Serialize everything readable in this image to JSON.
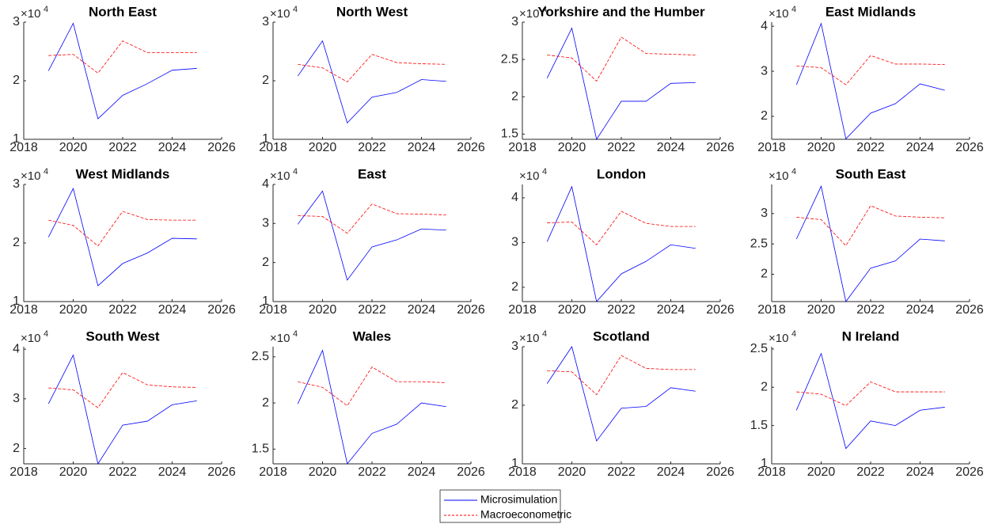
{
  "chart_data": [
    {
      "type": "line",
      "title": "North East",
      "y_multiplier": "×10",
      "y_exponent": "4",
      "x": [
        2019,
        2020,
        2021,
        2022,
        2023,
        2024,
        2025
      ],
      "xlim": [
        2018,
        2026
      ],
      "xticks": [
        2018,
        2020,
        2022,
        2024,
        2026
      ],
      "ylim": [
        1,
        3
      ],
      "yticks": [
        1,
        2,
        3
      ],
      "series": [
        {
          "name": "Microsimulation",
          "color": "#0000ff",
          "linestyle": "solid",
          "values": [
            2.17,
            2.98,
            1.35,
            1.75,
            1.95,
            2.18,
            2.21
          ]
        },
        {
          "name": "Macroeconometric",
          "color": "#ff0000",
          "linestyle": "dashed",
          "values": [
            2.43,
            2.45,
            2.13,
            2.68,
            2.48,
            2.48,
            2.48
          ]
        }
      ]
    },
    {
      "type": "line",
      "title": "North West",
      "y_multiplier": "×10",
      "y_exponent": "4",
      "x": [
        2019,
        2020,
        2021,
        2022,
        2023,
        2024,
        2025
      ],
      "xlim": [
        2018,
        2026
      ],
      "xticks": [
        2018,
        2020,
        2022,
        2024,
        2026
      ],
      "ylim": [
        1,
        3
      ],
      "yticks": [
        1,
        2,
        3
      ],
      "series": [
        {
          "name": "Microsimulation",
          "color": "#0000ff",
          "linestyle": "solid",
          "values": [
            2.08,
            2.68,
            1.28,
            1.72,
            1.8,
            2.02,
            1.99
          ]
        },
        {
          "name": "Macroeconometric",
          "color": "#ff0000",
          "linestyle": "dashed",
          "values": [
            2.28,
            2.22,
            1.98,
            2.45,
            2.31,
            2.29,
            2.28
          ]
        }
      ]
    },
    {
      "type": "line",
      "title": "Yorkshire and the Humber",
      "y_multiplier": "×10",
      "y_exponent": "4",
      "x": [
        2019,
        2020,
        2021,
        2022,
        2023,
        2024,
        2025
      ],
      "xlim": [
        2018,
        2026
      ],
      "xticks": [
        2018,
        2020,
        2022,
        2024,
        2026
      ],
      "ylim": [
        1.43,
        3
      ],
      "yticks": [
        1.5,
        2,
        2.5,
        3
      ],
      "series": [
        {
          "name": "Microsimulation",
          "color": "#0000ff",
          "linestyle": "solid",
          "values": [
            2.25,
            2.92,
            1.43,
            1.94,
            1.94,
            2.18,
            2.19
          ]
        },
        {
          "name": "Macroeconometric",
          "color": "#ff0000",
          "linestyle": "dashed",
          "values": [
            2.56,
            2.52,
            2.21,
            2.8,
            2.58,
            2.57,
            2.56
          ]
        }
      ]
    },
    {
      "type": "line",
      "title": "East Midlands",
      "y_multiplier": "×10",
      "y_exponent": "4",
      "x": [
        2019,
        2020,
        2021,
        2022,
        2023,
        2024,
        2025
      ],
      "xlim": [
        2018,
        2026
      ],
      "xticks": [
        2018,
        2020,
        2022,
        2024,
        2026
      ],
      "ylim": [
        1.49,
        4.09
      ],
      "yticks": [
        2,
        3,
        4
      ],
      "series": [
        {
          "name": "Microsimulation",
          "color": "#0000ff",
          "linestyle": "solid",
          "values": [
            2.7,
            4.06,
            1.5,
            2.07,
            2.28,
            2.72,
            2.58
          ]
        },
        {
          "name": "Macroeconometric",
          "color": "#ff0000",
          "linestyle": "dashed",
          "values": [
            3.12,
            3.08,
            2.7,
            3.35,
            3.16,
            3.16,
            3.15
          ]
        }
      ]
    },
    {
      "type": "line",
      "title": "West Midlands",
      "y_multiplier": "×10",
      "y_exponent": "4",
      "x": [
        2019,
        2020,
        2021,
        2022,
        2023,
        2024,
        2025
      ],
      "xlim": [
        2018,
        2026
      ],
      "xticks": [
        2018,
        2020,
        2022,
        2024,
        2026
      ],
      "ylim": [
        1,
        3
      ],
      "yticks": [
        1,
        2,
        3
      ],
      "series": [
        {
          "name": "Microsimulation",
          "color": "#0000ff",
          "linestyle": "solid",
          "values": [
            2.1,
            2.93,
            1.27,
            1.65,
            1.83,
            2.08,
            2.07
          ]
        },
        {
          "name": "Macroeconometric",
          "color": "#ff0000",
          "linestyle": "dashed",
          "values": [
            2.39,
            2.3,
            1.95,
            2.54,
            2.4,
            2.39,
            2.39
          ]
        }
      ]
    },
    {
      "type": "line",
      "title": "East",
      "y_multiplier": "×10",
      "y_exponent": "4",
      "x": [
        2019,
        2020,
        2021,
        2022,
        2023,
        2024,
        2025
      ],
      "xlim": [
        2018,
        2026
      ],
      "xticks": [
        2018,
        2020,
        2022,
        2024,
        2026
      ],
      "ylim": [
        1,
        4
      ],
      "yticks": [
        1,
        2,
        3,
        4
      ],
      "series": [
        {
          "name": "Microsimulation",
          "color": "#0000ff",
          "linestyle": "solid",
          "values": [
            2.98,
            3.83,
            1.55,
            2.4,
            2.58,
            2.86,
            2.83
          ]
        },
        {
          "name": "Macroeconometric",
          "color": "#ff0000",
          "linestyle": "dashed",
          "values": [
            3.2,
            3.18,
            2.75,
            3.5,
            3.25,
            3.24,
            3.22
          ]
        }
      ]
    },
    {
      "type": "line",
      "title": "London",
      "y_multiplier": "×10",
      "y_exponent": "4",
      "x": [
        2019,
        2020,
        2021,
        2022,
        2023,
        2024,
        2025
      ],
      "xlim": [
        2018,
        2026
      ],
      "xticks": [
        2018,
        2020,
        2022,
        2024,
        2026
      ],
      "ylim": [
        1.68,
        4.3
      ],
      "yticks": [
        2,
        3,
        4
      ],
      "series": [
        {
          "name": "Microsimulation",
          "color": "#0000ff",
          "linestyle": "solid",
          "values": [
            3.02,
            4.25,
            1.68,
            2.3,
            2.58,
            2.95,
            2.87
          ]
        },
        {
          "name": "Macroeconometric",
          "color": "#ff0000",
          "linestyle": "dashed",
          "values": [
            3.44,
            3.46,
            2.95,
            3.7,
            3.43,
            3.36,
            3.36
          ]
        }
      ]
    },
    {
      "type": "line",
      "title": "South East",
      "y_multiplier": "×10",
      "y_exponent": "4",
      "x": [
        2019,
        2020,
        2021,
        2022,
        2023,
        2024,
        2025
      ],
      "xlim": [
        2018,
        2026
      ],
      "xticks": [
        2018,
        2020,
        2022,
        2024,
        2026
      ],
      "ylim": [
        1.55,
        3.48
      ],
      "yticks": [
        2,
        2.5,
        3
      ],
      "series": [
        {
          "name": "Microsimulation",
          "color": "#0000ff",
          "linestyle": "solid",
          "values": [
            2.58,
            3.45,
            1.55,
            2.1,
            2.22,
            2.58,
            2.55
          ]
        },
        {
          "name": "Macroeconometric",
          "color": "#ff0000",
          "linestyle": "dashed",
          "values": [
            2.94,
            2.9,
            2.47,
            3.13,
            2.96,
            2.94,
            2.93
          ]
        }
      ]
    },
    {
      "type": "line",
      "title": "South West",
      "y_multiplier": "×10",
      "y_exponent": "4",
      "x": [
        2019,
        2020,
        2021,
        2022,
        2023,
        2024,
        2025
      ],
      "xlim": [
        2018,
        2026
      ],
      "xticks": [
        2018,
        2020,
        2022,
        2024,
        2026
      ],
      "ylim": [
        1.69,
        4.05
      ],
      "yticks": [
        2,
        3,
        4
      ],
      "series": [
        {
          "name": "Microsimulation",
          "color": "#0000ff",
          "linestyle": "solid",
          "values": [
            2.9,
            3.88,
            1.69,
            2.47,
            2.55,
            2.88,
            2.96
          ]
        },
        {
          "name": "Macroeconometric",
          "color": "#ff0000",
          "linestyle": "dashed",
          "values": [
            3.22,
            3.18,
            2.82,
            3.53,
            3.28,
            3.24,
            3.23
          ]
        }
      ]
    },
    {
      "type": "line",
      "title": "Wales",
      "y_multiplier": "×10",
      "y_exponent": "4",
      "x": [
        2019,
        2020,
        2021,
        2022,
        2023,
        2024,
        2025
      ],
      "xlim": [
        2018,
        2026
      ],
      "xticks": [
        2018,
        2020,
        2022,
        2024,
        2026
      ],
      "ylim": [
        1.34,
        2.61
      ],
      "yticks": [
        1.5,
        2,
        2.5
      ],
      "series": [
        {
          "name": "Microsimulation",
          "color": "#0000ff",
          "linestyle": "solid",
          "values": [
            1.99,
            2.57,
            1.34,
            1.67,
            1.77,
            2.0,
            1.96
          ]
        },
        {
          "name": "Macroeconometric",
          "color": "#ff0000",
          "linestyle": "dashed",
          "values": [
            2.23,
            2.17,
            1.97,
            2.39,
            2.23,
            2.23,
            2.22
          ]
        }
      ]
    },
    {
      "type": "line",
      "title": "Scotland",
      "y_multiplier": "×10",
      "y_exponent": "4",
      "x": [
        2019,
        2020,
        2021,
        2022,
        2023,
        2024,
        2025
      ],
      "xlim": [
        2018,
        2026
      ],
      "xticks": [
        2018,
        2020,
        2022,
        2024,
        2026
      ],
      "ylim": [
        1,
        3
      ],
      "yticks": [
        1,
        2,
        3
      ],
      "series": [
        {
          "name": "Microsimulation",
          "color": "#0000ff",
          "linestyle": "solid",
          "values": [
            2.37,
            3.0,
            1.39,
            1.95,
            1.98,
            2.3,
            2.24
          ]
        },
        {
          "name": "Macroeconometric",
          "color": "#ff0000",
          "linestyle": "dashed",
          "values": [
            2.59,
            2.57,
            2.18,
            2.85,
            2.63,
            2.61,
            2.61
          ]
        }
      ]
    },
    {
      "type": "line",
      "title": "N Ireland",
      "y_multiplier": "×10",
      "y_exponent": "4",
      "x": [
        2019,
        2020,
        2021,
        2022,
        2023,
        2024,
        2025
      ],
      "xlim": [
        2018,
        2026
      ],
      "xticks": [
        2018,
        2020,
        2022,
        2024,
        2026
      ],
      "ylim": [
        1,
        2.53
      ],
      "yticks": [
        1,
        1.5,
        2,
        2.5
      ],
      "series": [
        {
          "name": "Microsimulation",
          "color": "#0000ff",
          "linestyle": "solid",
          "values": [
            1.7,
            2.44,
            1.2,
            1.56,
            1.5,
            1.7,
            1.74
          ]
        },
        {
          "name": "Macroeconometric",
          "color": "#ff0000",
          "linestyle": "dashed",
          "values": [
            1.94,
            1.91,
            1.76,
            2.07,
            1.94,
            1.94,
            1.94
          ]
        }
      ]
    }
  ]
}
